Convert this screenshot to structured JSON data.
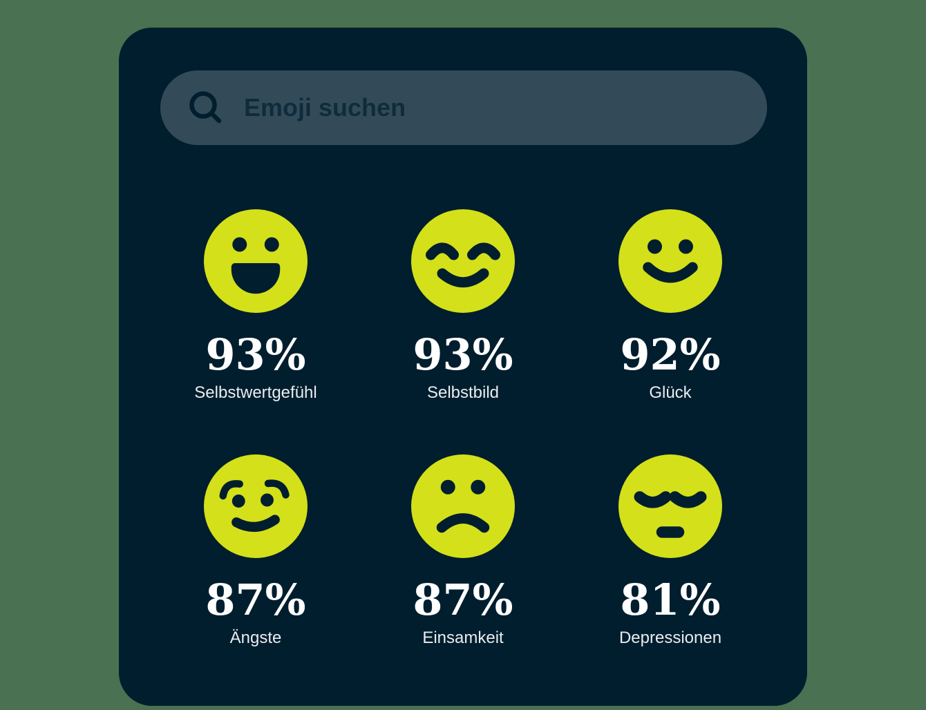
{
  "colors": {
    "page_bg": "#4a7151",
    "card_bg": "#011e2e",
    "search_bg": "#334b59",
    "search_text": "#0f2c3d",
    "emoji": "#d4e01a",
    "ink": "#011e2e",
    "value_color": "#ffffff",
    "label_color": "#e8edef"
  },
  "search": {
    "placeholder": "Emoji suchen",
    "icon": "search-icon"
  },
  "stats": [
    {
      "icon": "grinning-face",
      "value": "93%",
      "label": "Selbstwertgefühl"
    },
    {
      "icon": "smiling-face-closed-eyes",
      "value": "93%",
      "label": "Selbstbild"
    },
    {
      "icon": "smiling-face",
      "value": "92%",
      "label": "Glück"
    },
    {
      "icon": "worried-face",
      "value": "87%",
      "label": "Ängste"
    },
    {
      "icon": "frowning-face",
      "value": "87%",
      "label": "Einsamkeit"
    },
    {
      "icon": "tired-face",
      "value": "81%",
      "label": "Depressionen"
    }
  ]
}
